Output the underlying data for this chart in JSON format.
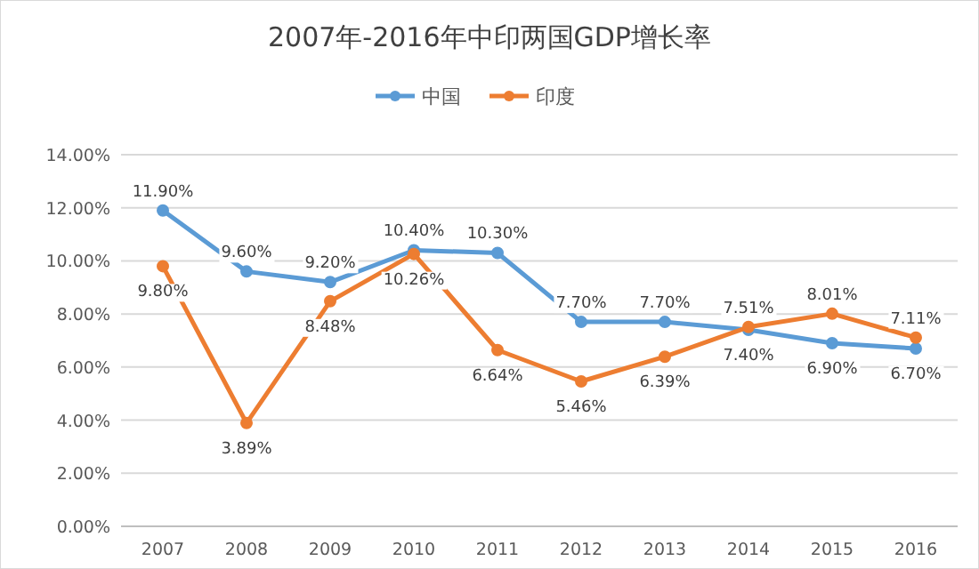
{
  "chart_data": {
    "type": "line",
    "title": "2007年-2016年中印两国GDP增长率",
    "categories": [
      "2007",
      "2008",
      "2009",
      "2010",
      "2011",
      "2012",
      "2013",
      "2014",
      "2015",
      "2016"
    ],
    "series": [
      {
        "name": "中国",
        "color": "#5b9bd5",
        "values": [
          11.9,
          9.6,
          9.2,
          10.4,
          10.3,
          7.7,
          7.7,
          7.4,
          6.9,
          6.7
        ],
        "value_labels": [
          "11.90%",
          "9.60%",
          "9.20%",
          "10.40%",
          "10.30%",
          "7.70%",
          "7.70%",
          "7.40%",
          "6.90%",
          "6.70%"
        ]
      },
      {
        "name": "印度",
        "color": "#ed7d31",
        "values": [
          9.8,
          3.89,
          8.48,
          10.26,
          6.64,
          5.46,
          6.39,
          7.51,
          8.01,
          7.11
        ],
        "value_labels": [
          "9.80%",
          "3.89%",
          "8.48%",
          "10.26%",
          "6.64%",
          "5.46%",
          "6.39%",
          "7.51%",
          "8.01%",
          "7.11%"
        ]
      }
    ],
    "ylim": [
      0,
      14
    ],
    "yticks": [
      {
        "value": 0,
        "label": "0.00%"
      },
      {
        "value": 2,
        "label": "2.00%"
      },
      {
        "value": 4,
        "label": "4.00%"
      },
      {
        "value": 6,
        "label": "6.00%"
      },
      {
        "value": 8,
        "label": "8.00%"
      },
      {
        "value": 10,
        "label": "10.00%"
      },
      {
        "value": 12,
        "label": "12.00%"
      },
      {
        "value": 14,
        "label": "14.00%"
      }
    ],
    "grid": "y",
    "legend": "top",
    "marker": "circle",
    "line_style": "solid"
  }
}
